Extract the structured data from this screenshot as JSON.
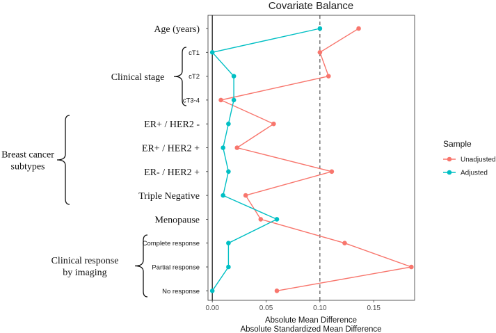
{
  "chart_data": {
    "type": "scatter",
    "title": "Covariate Balance",
    "xlabel": "Absolute Mean Difference",
    "xlabel2": "Absolute Standardized Mean Difference",
    "xlim": [
      -0.004,
      0.188
    ],
    "xticks": [
      0,
      0.05,
      0.1,
      0.15
    ],
    "xtick_labels": [
      "0.00",
      "0.05",
      "0.10",
      "0.15"
    ],
    "threshold": 0.1,
    "zero_line": 0,
    "covariates": [
      {
        "label": "Age (years)",
        "style": "serif"
      },
      {
        "label": "cT1",
        "style": "small"
      },
      {
        "label": "cT2",
        "style": "small"
      },
      {
        "label": "cT3-4",
        "style": "small"
      },
      {
        "label": "ER+ / HER2  -",
        "style": "serif"
      },
      {
        "label": "ER+ / HER2 +",
        "style": "serif"
      },
      {
        "label": "ER- / HER2 +",
        "style": "serif"
      },
      {
        "label": "Triple Negative",
        "style": "serif"
      },
      {
        "label": "Menopause",
        "style": "serif"
      },
      {
        "label": "Complete response",
        "style": "small"
      },
      {
        "label": "Partial response",
        "style": "small"
      },
      {
        "label": "No response",
        "style": "small"
      }
    ],
    "groups": [
      {
        "lines": [
          "Clinical stage"
        ],
        "from": 1,
        "to": 3
      },
      {
        "lines": [
          "Breast cancer",
          "subtypes"
        ],
        "from": 4,
        "to": 7
      },
      {
        "lines": [
          "Clinical response",
          "by imaging"
        ],
        "from": 9,
        "to": 11
      }
    ],
    "series": [
      {
        "name": "Unadjusted",
        "color": "#F8766D",
        "values": [
          0.136,
          0.1,
          0.108,
          0.008,
          0.057,
          0.023,
          0.111,
          0.031,
          0.045,
          0.123,
          0.185,
          0.06
        ]
      },
      {
        "name": "Adjusted",
        "color": "#00BFC4",
        "values": [
          0.1,
          0.0,
          0.02,
          0.02,
          0.015,
          0.01,
          0.015,
          0.01,
          0.06,
          0.015,
          0.015,
          0.0
        ]
      }
    ],
    "legend": {
      "title": "Sample",
      "position": "right"
    }
  }
}
